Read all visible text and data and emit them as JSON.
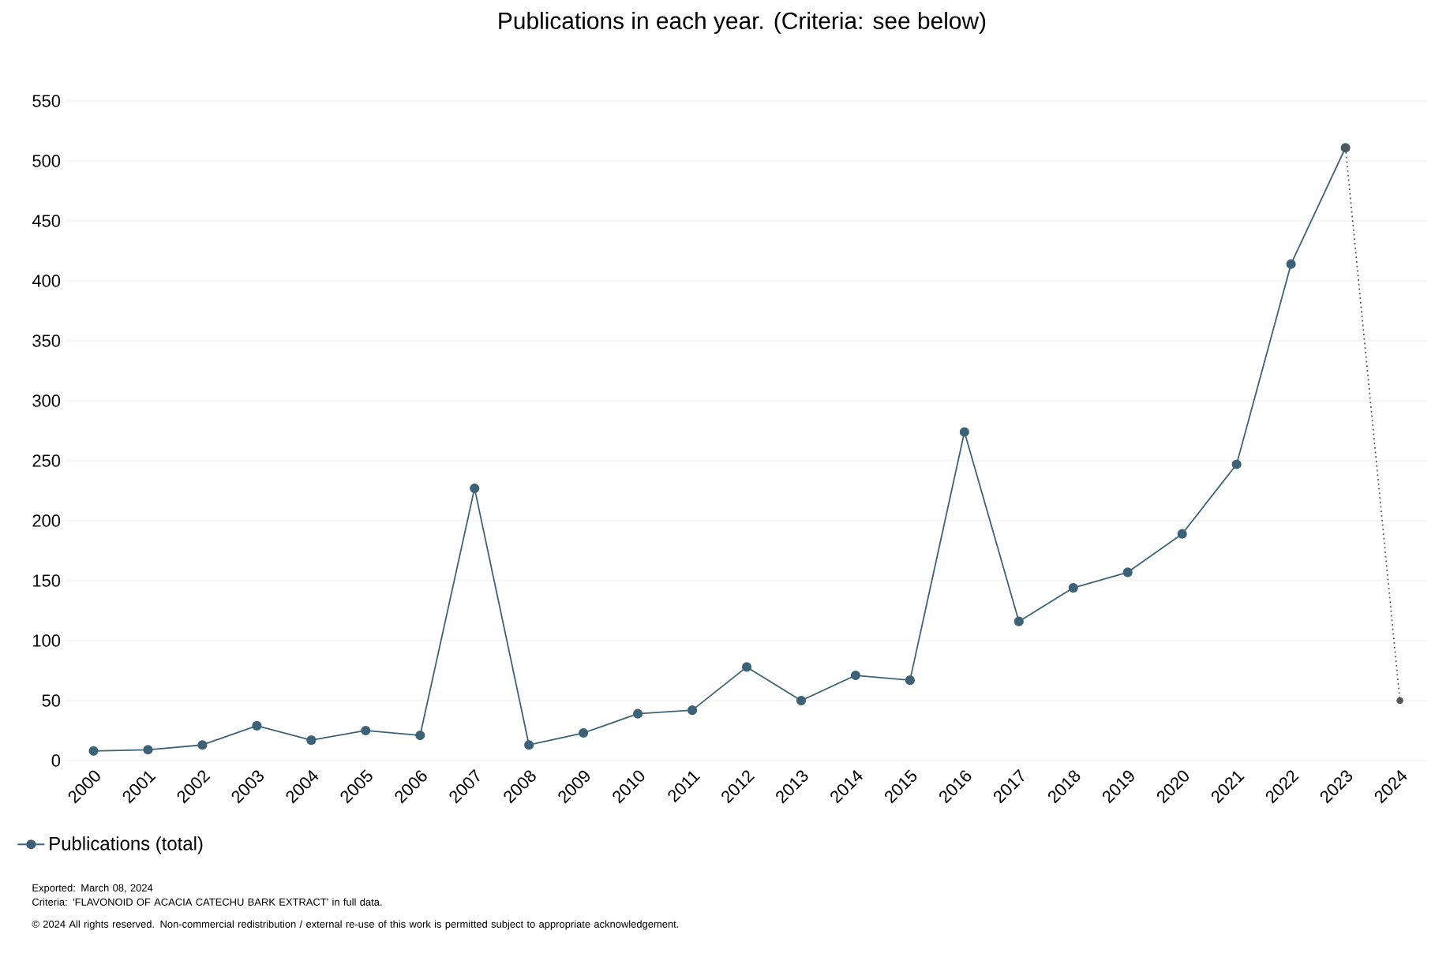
{
  "chart_data": {
    "type": "line",
    "title": "Publications in each year. (Criteria: see below)",
    "categories": [
      "2000",
      "2001",
      "2002",
      "2003",
      "2004",
      "2005",
      "2006",
      "2007",
      "2008",
      "2009",
      "2010",
      "2011",
      "2012",
      "2013",
      "2014",
      "2015",
      "2016",
      "2017",
      "2018",
      "2019",
      "2020",
      "2021",
      "2022",
      "2023",
      "2024"
    ],
    "series": [
      {
        "name": "Publications (total)",
        "color": "#3d6278",
        "line_style": "solid",
        "values": [
          8,
          9,
          13,
          29,
          17,
          25,
          21,
          227,
          13,
          23,
          39,
          42,
          78,
          50,
          71,
          67,
          274,
          116,
          144,
          157,
          189,
          247,
          414,
          511,
          null
        ]
      },
      {
        "color": "#555555",
        "line_style": "dotted",
        "values": [
          null,
          null,
          null,
          null,
          null,
          null,
          null,
          null,
          null,
          null,
          null,
          null,
          null,
          null,
          null,
          null,
          null,
          null,
          null,
          null,
          null,
          null,
          null,
          511,
          50
        ]
      }
    ],
    "ylim": [
      0,
      550
    ],
    "yticks": [
      0,
      50,
      100,
      150,
      200,
      250,
      300,
      350,
      400,
      450,
      500,
      550
    ],
    "grid": "y",
    "legend": "bottom left",
    "marker": "circle",
    "annotations": [
      "Exported: March 08, 2024",
      "Criteria: 'FLAVONOID OF ACACIA CATECHU BARK EXTRACT' in full data.",
      "© 2024 All rights reserved. Non-commercial redistribution / external re-use of this work is permitted subject to appropriate acknowledgement."
    ]
  }
}
